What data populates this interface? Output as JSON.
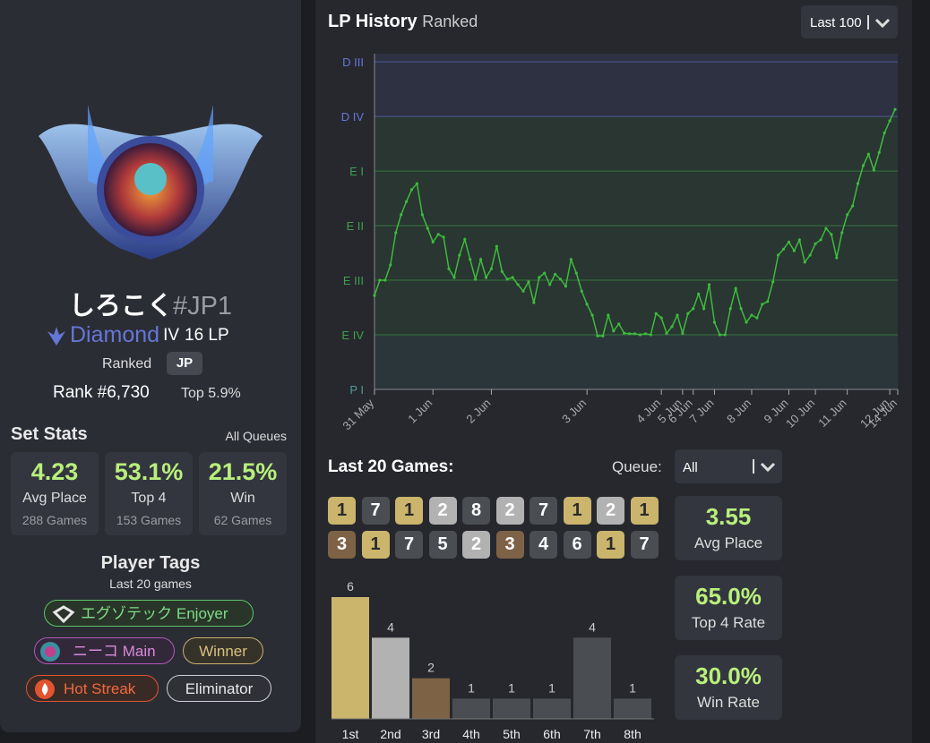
{
  "profile": {
    "name": "しろこく",
    "tag": "#JP1",
    "tier": "Diamond",
    "division": "IV",
    "lp": "16 LP",
    "queue": "Ranked",
    "region": "JP",
    "rank": "Rank #6,730",
    "top": "Top 5.9%"
  },
  "set_stats": {
    "title": "Set Stats",
    "filter": "All Queues",
    "cards": [
      {
        "value": "4.23",
        "label": "Avg Place",
        "games": "288 Games"
      },
      {
        "value": "53.1%",
        "label": "Top 4",
        "games": "153 Games"
      },
      {
        "value": "21.5%",
        "label": "Win",
        "games": "62 Games"
      }
    ]
  },
  "player_tags": {
    "title": "Player Tags",
    "subtitle": "Last 20 games",
    "tags": [
      "エグゾテック Enjoyer",
      "ニーコ Main",
      "Winner",
      "Hot Streak",
      "Eliminator"
    ]
  },
  "lp_history": {
    "title": "LP History",
    "subtitle": "Ranked",
    "range": "Last 100",
    "chart": {
      "type": "line",
      "color": "#3dbb3d",
      "x": [
        0,
        1,
        2,
        3,
        4,
        5,
        6,
        7,
        8,
        9,
        10,
        11,
        12,
        13,
        14,
        15,
        16,
        17,
        18,
        19,
        20,
        21,
        22,
        23,
        24,
        25,
        26,
        27,
        28,
        29,
        30,
        31,
        32,
        33,
        34,
        35,
        36,
        37,
        38,
        39,
        40,
        41,
        42,
        43,
        44,
        45,
        46,
        47,
        48,
        49,
        50,
        51,
        52,
        53,
        54,
        55,
        56,
        57,
        58,
        59,
        60,
        61,
        62,
        63,
        64,
        65,
        66,
        67,
        68,
        69,
        70,
        71,
        72,
        73,
        74,
        75,
        76,
        77,
        78,
        79,
        80,
        81,
        82,
        83,
        84,
        85,
        86,
        87,
        88,
        89,
        90,
        91,
        92,
        93,
        94,
        95,
        96,
        97,
        98
      ],
      "values": [
        172,
        200,
        200,
        228,
        287,
        320,
        344,
        366,
        377,
        320,
        295,
        270,
        284,
        279,
        221,
        205,
        246,
        275,
        238,
        202,
        238,
        205,
        221,
        262,
        216,
        202,
        205,
        192,
        180,
        197,
        159,
        205,
        213,
        192,
        211,
        202,
        189,
        238,
        213,
        180,
        156,
        136,
        98,
        98,
        136,
        107,
        120,
        103,
        102,
        102,
        100,
        102,
        100,
        139,
        131,
        103,
        115,
        136,
        103,
        139,
        148,
        175,
        148,
        192,
        123,
        100,
        100,
        148,
        185,
        148,
        123,
        136,
        131,
        156,
        161,
        197,
        246,
        257,
        270,
        254,
        274,
        233,
        246,
        267,
        274,
        295,
        284,
        241,
        287,
        320,
        336,
        377,
        410,
        431,
        402,
        434,
        470,
        492,
        513
      ],
      "xlim": [
        0,
        98.5
      ],
      "xticks": [
        {
          "value": 0,
          "label": "31 May"
        },
        {
          "value": 11,
          "label": "1 Jun"
        },
        {
          "value": 22,
          "label": "2 Jun"
        },
        {
          "value": 40,
          "label": "3 Jun"
        },
        {
          "value": 54,
          "label": "4 Jun"
        },
        {
          "value": 58,
          "label": "5 Jun"
        },
        {
          "value": 60,
          "label": "6 Jun"
        },
        {
          "value": 64,
          "label": "7 Jun"
        },
        {
          "value": 71,
          "label": "8 Jun"
        },
        {
          "value": 78,
          "label": "9 Jun"
        },
        {
          "value": 83,
          "label": "10 Jun"
        },
        {
          "value": 89,
          "label": "11 Jun"
        },
        {
          "value": 97,
          "label": "12 Jun"
        },
        {
          "value": 98.5,
          "label": "14 Jun"
        }
      ],
      "ylim": [
        0,
        615
      ],
      "yticks": [
        {
          "value": 0,
          "label": "P I"
        },
        {
          "value": 100,
          "label": "E IV"
        },
        {
          "value": 200,
          "label": "E III"
        },
        {
          "value": 300,
          "label": "E II"
        },
        {
          "value": 400,
          "label": "E I"
        },
        {
          "value": 500,
          "label": "D IV"
        },
        {
          "value": 600,
          "label": "D III"
        }
      ],
      "ytick_colors": [
        "#4f9a9a",
        "#3fa04a",
        "#3fa04a",
        "#3fa04a",
        "#3fa04a",
        "#6577d6",
        "#6577d6"
      ]
    }
  },
  "last_games": {
    "title": "Last 20 Games:",
    "queue_label": "Queue:",
    "queue": "All",
    "placements": [
      1,
      7,
      1,
      2,
      8,
      2,
      7,
      1,
      2,
      1,
      3,
      1,
      7,
      5,
      2,
      3,
      4,
      6,
      1,
      7
    ],
    "summary": [
      {
        "value": "3.55",
        "label": "Avg Place"
      },
      {
        "value": "65.0%",
        "label": "Top 4 Rate"
      },
      {
        "value": "30.0%",
        "label": "Win Rate"
      }
    ],
    "chart": {
      "type": "bar",
      "categories": [
        "1st",
        "2nd",
        "3rd",
        "4th",
        "5th",
        "6th",
        "7th",
        "8th"
      ],
      "values": [
        6,
        4,
        2,
        1,
        1,
        1,
        4,
        1
      ],
      "colors": [
        "#cbb46c",
        "#b2b2b2",
        "#7e6246",
        "#4a4d52",
        "#4a4d52",
        "#4a4d52",
        "#4a4d52",
        "#4a4d52"
      ],
      "ylim": [
        0,
        6
      ]
    }
  }
}
